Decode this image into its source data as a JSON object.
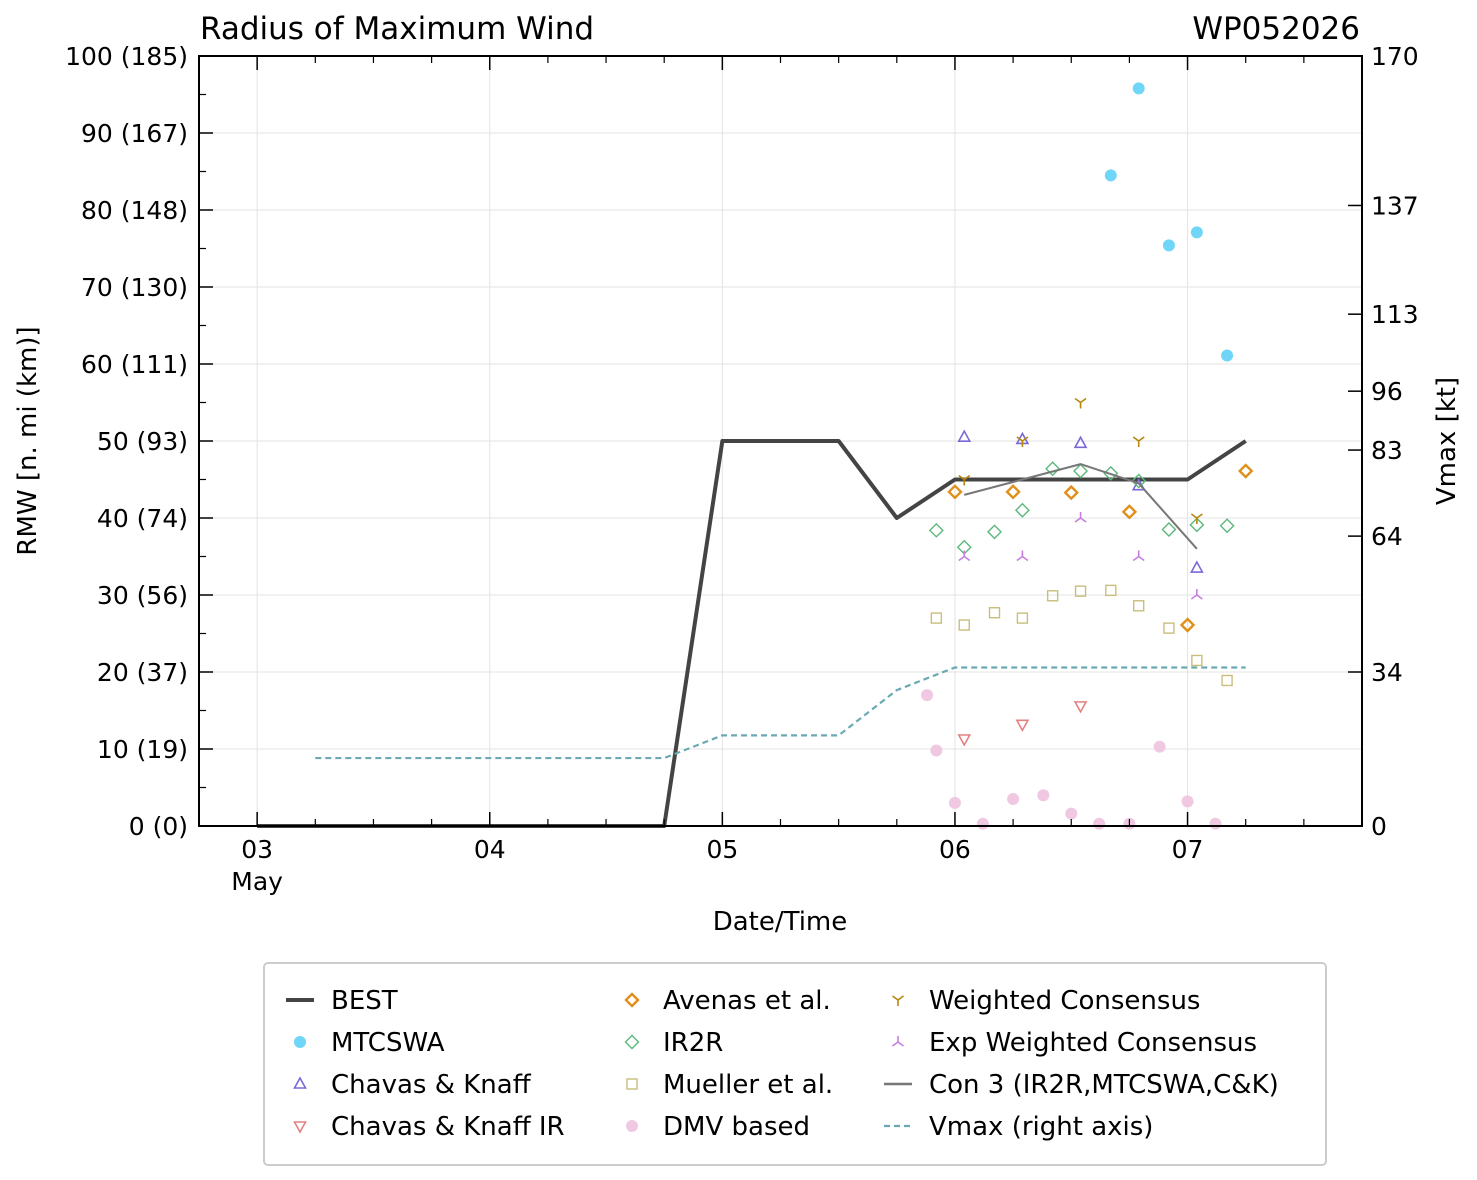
{
  "chart_data": {
    "type": "scatter",
    "title": "Radius of Maximum Wind",
    "storm_id": "WP052026",
    "xlabel": "Date/Time",
    "ylabel": "RMW [n. mi (km)]",
    "y2label": "Vmax [kt]",
    "xlim": [
      2.75,
      7.75
    ],
    "ylim": [
      0,
      100
    ],
    "y2lim": [
      0,
      170
    ],
    "x_unit": "day of May 2026",
    "x_ticks": [
      {
        "value": 3,
        "label": "03",
        "sublabel": "May"
      },
      {
        "value": 4,
        "label": "04",
        "sublabel": ""
      },
      {
        "value": 5,
        "label": "05",
        "sublabel": ""
      },
      {
        "value": 6,
        "label": "06",
        "sublabel": ""
      },
      {
        "value": 7,
        "label": "07",
        "sublabel": ""
      }
    ],
    "y_ticks": [
      {
        "value": 0,
        "label": "0 (0)"
      },
      {
        "value": 10,
        "label": "10 (19)"
      },
      {
        "value": 20,
        "label": "20 (37)"
      },
      {
        "value": 30,
        "label": "30 (56)"
      },
      {
        "value": 40,
        "label": "40 (74)"
      },
      {
        "value": 50,
        "label": "50 (93)"
      },
      {
        "value": 60,
        "label": "60 (111)"
      },
      {
        "value": 70,
        "label": "70 (130)"
      },
      {
        "value": 80,
        "label": "80 (148)"
      },
      {
        "value": 90,
        "label": "90 (167)"
      },
      {
        "value": 100,
        "label": "100 (185)"
      }
    ],
    "y2_ticks": [
      {
        "value": 0,
        "label": "0"
      },
      {
        "value": 34,
        "label": "34"
      },
      {
        "value": 64,
        "label": "64"
      },
      {
        "value": 83,
        "label": "83"
      },
      {
        "value": 96,
        "label": "96"
      },
      {
        "value": 113,
        "label": "113"
      },
      {
        "value": 137,
        "label": "137"
      },
      {
        "value": 170,
        "label": "170"
      }
    ],
    "grid": true,
    "legend_position": "below plot",
    "series": [
      {
        "name": "BEST",
        "kind": "line",
        "color": "#444444",
        "points": [
          [
            3.0,
            0
          ],
          [
            3.25,
            0
          ],
          [
            3.5,
            0
          ],
          [
            3.75,
            0
          ],
          [
            4.0,
            0
          ],
          [
            4.25,
            0
          ],
          [
            4.5,
            0
          ],
          [
            4.75,
            0
          ],
          [
            5.0,
            50
          ],
          [
            5.25,
            50
          ],
          [
            5.5,
            50
          ],
          [
            5.75,
            40
          ],
          [
            6.0,
            45
          ],
          [
            6.25,
            45
          ],
          [
            6.5,
            45
          ],
          [
            6.75,
            45
          ],
          [
            7.0,
            45
          ],
          [
            7.25,
            50
          ]
        ]
      },
      {
        "name": "MTCSWA",
        "kind": "marker",
        "marker": "circle",
        "color": "#6fd6f7",
        "points": [
          [
            6.67,
            84.5
          ],
          [
            6.79,
            95.8
          ],
          [
            6.92,
            75.4
          ],
          [
            7.04,
            77.1
          ],
          [
            7.17,
            61.1
          ]
        ]
      },
      {
        "name": "Chavas & Knaff",
        "kind": "marker",
        "marker": "triangle-up",
        "color": "#7b68d6",
        "points": [
          [
            6.04,
            50.5
          ],
          [
            6.29,
            50.2
          ],
          [
            6.54,
            49.7
          ],
          [
            6.79,
            44.2
          ],
          [
            7.04,
            33.5
          ]
        ]
      },
      {
        "name": "Chavas & Knaff IR",
        "kind": "marker",
        "marker": "triangle-down",
        "color": "#e58080",
        "points": [
          [
            6.04,
            11.3
          ],
          [
            6.29,
            13.2
          ],
          [
            6.54,
            15.6
          ]
        ]
      },
      {
        "name": "Avenas et al.",
        "kind": "marker",
        "marker": "diamond",
        "color": "#e0901a",
        "points": [
          [
            6.0,
            43.4
          ],
          [
            6.25,
            43.4
          ],
          [
            6.5,
            43.3
          ],
          [
            6.75,
            40.8
          ],
          [
            7.0,
            26.1
          ],
          [
            7.25,
            46.1
          ]
        ]
      },
      {
        "name": "IR2R",
        "kind": "marker",
        "marker": "diamond-open",
        "color": "#5cb87a",
        "points": [
          [
            5.92,
            38.4
          ],
          [
            6.04,
            36.2
          ],
          [
            6.17,
            38.2
          ],
          [
            6.29,
            41.0
          ],
          [
            6.42,
            46.4
          ],
          [
            6.54,
            46.1
          ],
          [
            6.67,
            45.8
          ],
          [
            6.79,
            44.8
          ],
          [
            6.92,
            38.5
          ],
          [
            7.04,
            39.1
          ],
          [
            7.17,
            39.0
          ]
        ]
      },
      {
        "name": "Mueller et al.",
        "kind": "marker",
        "marker": "square",
        "color": "#c8bf7a",
        "points": [
          [
            5.92,
            27.0
          ],
          [
            6.04,
            26.1
          ],
          [
            6.17,
            27.7
          ],
          [
            6.29,
            27.0
          ],
          [
            6.42,
            29.9
          ],
          [
            6.54,
            30.5
          ],
          [
            6.67,
            30.6
          ],
          [
            6.79,
            28.6
          ],
          [
            6.92,
            25.7
          ],
          [
            7.04,
            21.5
          ],
          [
            7.17,
            18.9
          ]
        ]
      },
      {
        "name": "DMV based",
        "kind": "marker",
        "marker": "circle",
        "color": "#f0c8e2",
        "points": [
          [
            5.88,
            17.0
          ],
          [
            6.0,
            3.0
          ],
          [
            5.92,
            9.8
          ],
          [
            6.12,
            0.3
          ],
          [
            6.25,
            3.5
          ],
          [
            6.38,
            4.0
          ],
          [
            6.5,
            1.6
          ],
          [
            6.62,
            0.3
          ],
          [
            6.75,
            0.3
          ],
          [
            6.88,
            10.3
          ],
          [
            7.0,
            3.2
          ],
          [
            7.12,
            0.3
          ]
        ]
      },
      {
        "name": "Weighted Consensus",
        "kind": "marker",
        "marker": "tri-down",
        "color": "#b8860b",
        "points": [
          [
            6.04,
            45.0
          ],
          [
            6.29,
            50.0
          ],
          [
            6.54,
            55.0
          ],
          [
            6.79,
            50.0
          ],
          [
            7.04,
            40.0
          ]
        ]
      },
      {
        "name": "Exp Weighted Consensus",
        "kind": "marker",
        "marker": "tri-up",
        "color": "#c77ee0",
        "points": [
          [
            6.04,
            35.0
          ],
          [
            6.29,
            35.0
          ],
          [
            6.54,
            40.0
          ],
          [
            6.79,
            35.0
          ],
          [
            7.04,
            30.0
          ]
        ]
      },
      {
        "name": "Con 3 (IR2R,MTCSWA,C&K)",
        "kind": "line",
        "color": "#777777",
        "points": [
          [
            6.04,
            43.0
          ],
          [
            6.29,
            45.0
          ],
          [
            6.54,
            47.0
          ],
          [
            6.79,
            44.5
          ],
          [
            7.04,
            36.0
          ]
        ]
      },
      {
        "name": "Vmax (right axis)",
        "kind": "dashed-line",
        "axis": "right",
        "color": "#6aa9b4",
        "points": [
          [
            3.25,
            15
          ],
          [
            3.5,
            15
          ],
          [
            3.75,
            15
          ],
          [
            4.0,
            15
          ],
          [
            4.25,
            15
          ],
          [
            4.5,
            15
          ],
          [
            4.75,
            15
          ],
          [
            5.0,
            20
          ],
          [
            5.25,
            20
          ],
          [
            5.5,
            20
          ],
          [
            5.75,
            30
          ],
          [
            6.0,
            35
          ],
          [
            6.25,
            35
          ],
          [
            6.5,
            35
          ],
          [
            6.75,
            35
          ],
          [
            7.0,
            35
          ],
          [
            7.25,
            35
          ]
        ]
      }
    ]
  }
}
